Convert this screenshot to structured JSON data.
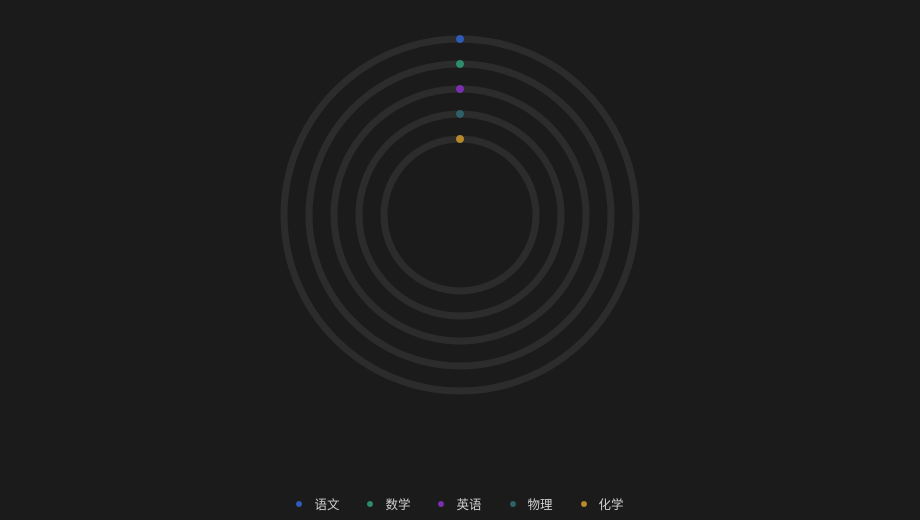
{
  "chart_data": {
    "type": "radial-bar",
    "categories": [
      "语文",
      "数学",
      "英语",
      "物理",
      "化学"
    ],
    "series": [
      {
        "name": "语文",
        "value": 0,
        "color": "#2f5bb7"
      },
      {
        "name": "数学",
        "value": 0,
        "color": "#2e8b6b"
      },
      {
        "name": "英语",
        "value": 0,
        "color": "#7a2fb0"
      },
      {
        "name": "物理",
        "value": 0,
        "color": "#2e6068"
      },
      {
        "name": "化学",
        "value": 0,
        "color": "#b8892b"
      }
    ],
    "track_color": "#2c2c2c",
    "legend_position": "bottom-center"
  }
}
